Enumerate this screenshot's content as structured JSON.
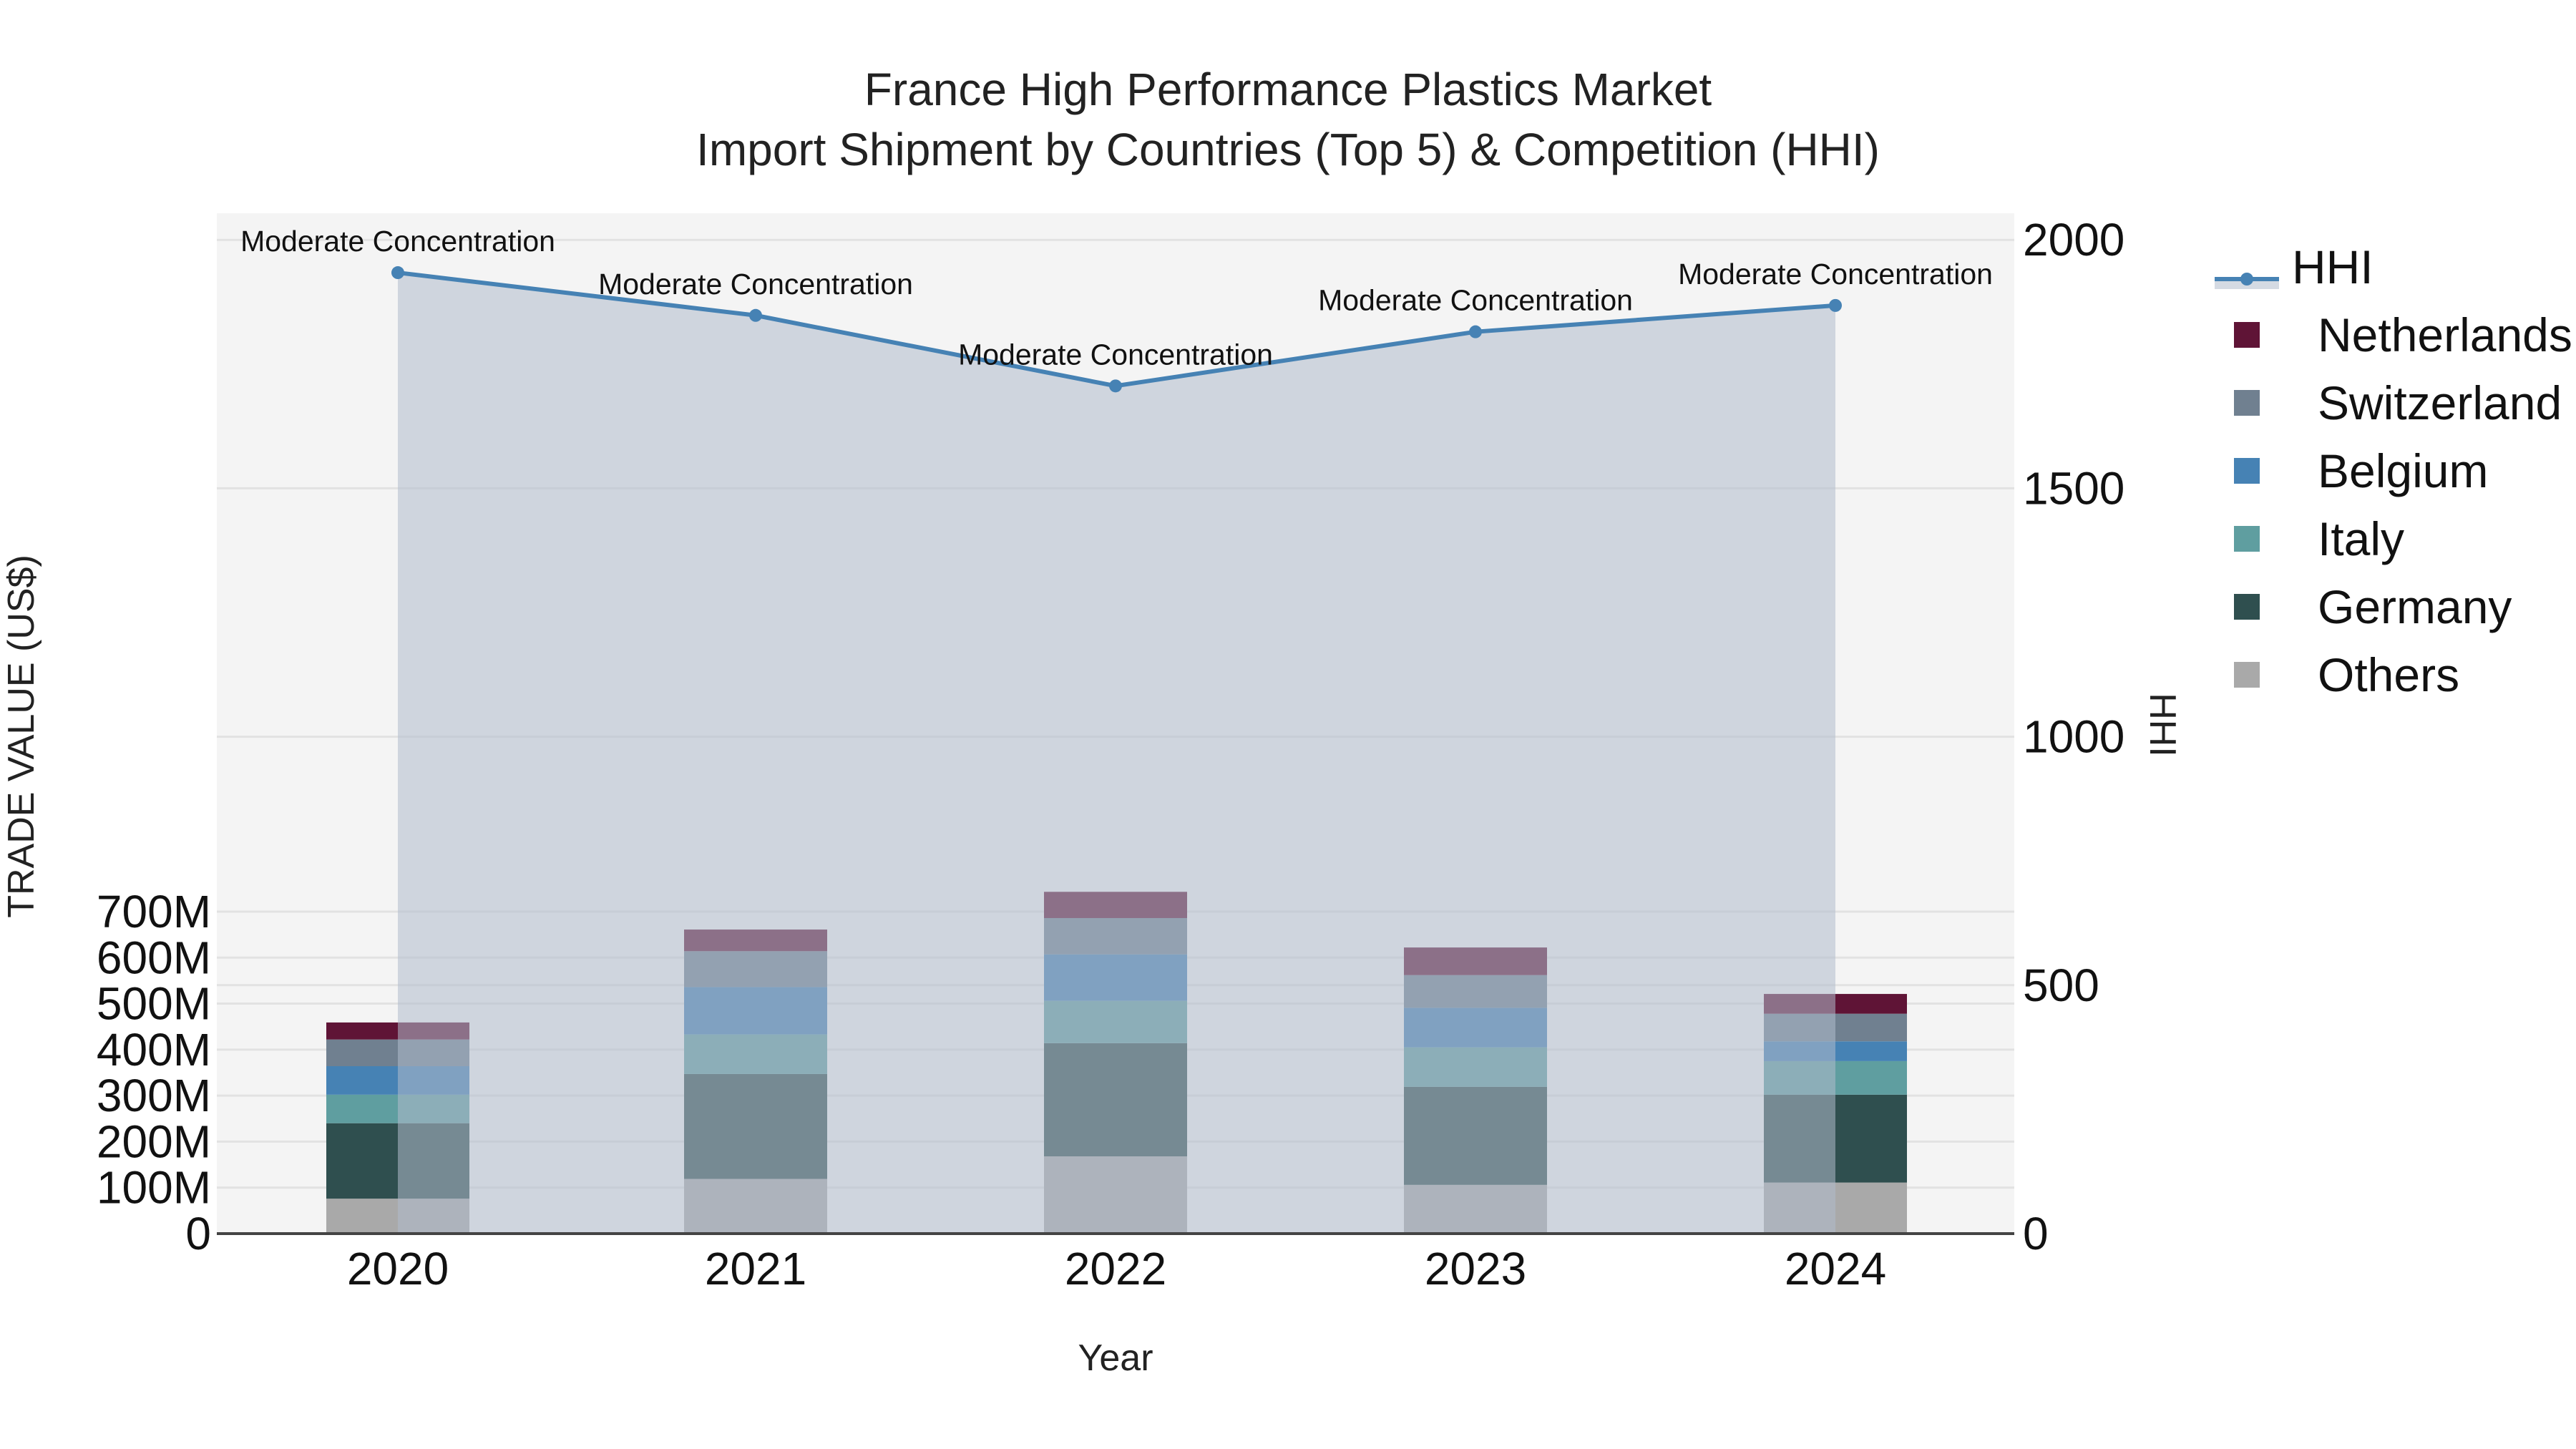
{
  "title": {
    "line1": "France High Performance Plastics Market",
    "line2": "Import Shipment by Countries (Top 5) & Competition (HHI)"
  },
  "colors": {
    "Netherlands": "#5f1436",
    "Switzerland": "#708090",
    "Belgium": "#4682b4",
    "Italy": "#5f9ea0",
    "Germany": "#2f4f4f",
    "Others": "#a9a9a9",
    "hhi_line": "#4682b4",
    "hhi_fill": "rgba(176,187,204,0.55)",
    "plot_bg": "#f4f4f4",
    "grid": "#e2e2e2"
  },
  "legend": [
    {
      "label": "HHI",
      "type": "line"
    },
    {
      "label": "Netherlands",
      "type": "bar"
    },
    {
      "label": "Switzerland",
      "type": "bar"
    },
    {
      "label": "Belgium",
      "type": "bar"
    },
    {
      "label": "Italy",
      "type": "bar"
    },
    {
      "label": "Germany",
      "type": "bar"
    },
    {
      "label": "Others",
      "type": "bar"
    }
  ],
  "chart_data": {
    "type": "bar",
    "stacked": true,
    "title": "France High Performance Plastics Market<br>Import Shipment by Countries (Top 5) & Competition (HHI)",
    "xlabel": "Year",
    "ylabel": "TRADE VALUE (US$)",
    "y2label": "HHI",
    "categories": [
      "2020",
      "2021",
      "2022",
      "2023",
      "2024"
    ],
    "ylim": [
      0,
      780000000
    ],
    "y_ticks": [
      0,
      100000000,
      200000000,
      300000000,
      400000000,
      500000000,
      600000000,
      700000000
    ],
    "y_tick_labels": [
      "0",
      "100M",
      "200M",
      "300M",
      "400M",
      "500M",
      "600M",
      "700M"
    ],
    "y2lim": [
      0,
      2050
    ],
    "y2_ticks": [
      0,
      500,
      1000,
      1500,
      2000
    ],
    "y2_tick_labels": [
      "0",
      "500",
      "1000",
      "1500",
      "2000"
    ],
    "series": [
      {
        "name": "Others",
        "values": [
          76000000,
          119000000,
          168000000,
          106000000,
          111000000
        ]
      },
      {
        "name": "Germany",
        "values": [
          164000000,
          228000000,
          246000000,
          213000000,
          191000000
        ]
      },
      {
        "name": "Italy",
        "values": [
          62000000,
          86000000,
          92000000,
          86000000,
          73000000
        ]
      },
      {
        "name": "Belgium",
        "values": [
          62000000,
          103000000,
          101000000,
          86000000,
          43000000
        ]
      },
      {
        "name": "Switzerland",
        "values": [
          58000000,
          78000000,
          79000000,
          71000000,
          60000000
        ]
      },
      {
        "name": "Netherlands",
        "values": [
          37000000,
          47000000,
          57000000,
          60000000,
          43000000
        ]
      }
    ],
    "line_series": {
      "name": "HHI",
      "axis": "y2",
      "values": [
        1934,
        1848,
        1706,
        1815,
        1868
      ],
      "annotations": [
        "Moderate Concentration",
        "Moderate Concentration",
        "Moderate Concentration",
        "Moderate Concentration",
        "Moderate Concentration"
      ],
      "fill": "tozeroy"
    },
    "grid": true,
    "legend_position": "right"
  }
}
